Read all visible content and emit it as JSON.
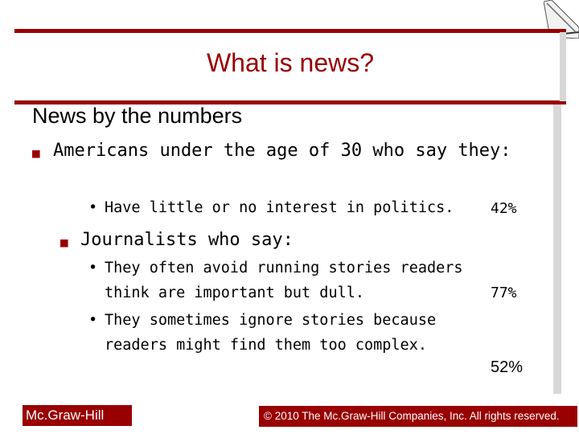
{
  "slide": {
    "title": "What is news?",
    "subtitle": "News by the numbers",
    "bullets": [
      {
        "text": "Americans under the age of 30 who say they:",
        "items": [
          {
            "text": "Have little or no interest in politics.",
            "value": "42%"
          }
        ]
      },
      {
        "text": "Journalists who say:",
        "items": [
          {
            "text": "They often avoid running stories readers think are important but dull.",
            "value": "77%"
          },
          {
            "text": "They sometimes ignore stories because readers might find them too complex.",
            "value": "52%"
          }
        ]
      }
    ]
  },
  "footer": {
    "brand": "Mc.Graw-Hill",
    "copyright": "© 2010 The Mc.Graw-Hill Companies, Inc. All rights reserved."
  },
  "colors": {
    "accent": "#990000"
  },
  "icons": {
    "bullet": "square-bullet-icon",
    "sub_bullet": "dot-bullet-icon",
    "corner": "page-curl-icon"
  }
}
